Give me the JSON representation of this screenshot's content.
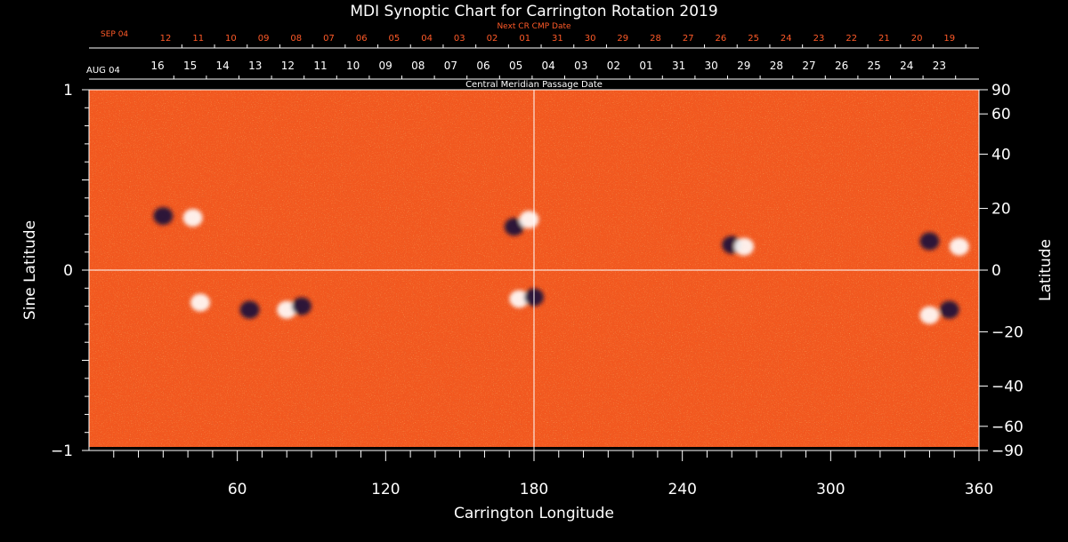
{
  "chart_data": {
    "type": "heatmap",
    "title": "MDI Synoptic Chart for Carrington Rotation 2019",
    "xlabel": "Carrington Longitude",
    "ylabel_left": "Sine Latitude",
    "ylabel_right": "Latitude",
    "xlim": [
      0,
      360
    ],
    "ylim": [
      -1,
      1
    ],
    "x_ticks": [
      60,
      120,
      180,
      240,
      300,
      360
    ],
    "y_ticks_left": [
      {
        "value": 1,
        "label": "1"
      },
      {
        "value": 0,
        "label": "0"
      },
      {
        "value": -1,
        "label": "−1"
      }
    ],
    "y_ticks_right": [
      {
        "deg": 90,
        "label": "90"
      },
      {
        "deg": 60,
        "label": "60"
      },
      {
        "deg": 40,
        "label": "40"
      },
      {
        "deg": 20,
        "label": "20"
      },
      {
        "deg": 0,
        "label": "0"
      },
      {
        "deg": -20,
        "label": "−20"
      },
      {
        "deg": -40,
        "label": "−40"
      },
      {
        "deg": -60,
        "label": "−60"
      },
      {
        "deg": -90,
        "label": "−90"
      }
    ],
    "crosshair": {
      "longitude": 180,
      "sine_latitude": 0
    },
    "next_cr_axis": {
      "caption": "Next CR CMP Date",
      "month_label": "SEP 04",
      "labels": [
        "12",
        "11",
        "10",
        "09",
        "08",
        "07",
        "06",
        "05",
        "04",
        "03",
        "02",
        "01",
        "31",
        "30",
        "29",
        "28",
        "27",
        "26",
        "25",
        "24",
        "23",
        "22",
        "21",
        "20",
        "19"
      ]
    },
    "cmp_axis": {
      "caption": "Central Meridian Passage Date",
      "month_label": "AUG 04",
      "labels": [
        "16",
        "15",
        "14",
        "13",
        "12",
        "11",
        "10",
        "09",
        "08",
        "07",
        "06",
        "05",
        "04",
        "03",
        "02",
        "01",
        "31",
        "30",
        "29",
        "28",
        "27",
        "26",
        "25",
        "24",
        "23"
      ]
    },
    "colors": {
      "background_field": "#f2581f",
      "positive_polarity": "#ffffff",
      "negative_polarity": "#14103a",
      "next_cr_text": "#ff5a28",
      "axes": "#ffffff"
    },
    "active_regions": [
      {
        "longitude": 30,
        "sine_latitude": 0.3,
        "polarity": "negative"
      },
      {
        "longitude": 42,
        "sine_latitude": 0.29,
        "polarity": "positive"
      },
      {
        "longitude": 172,
        "sine_latitude": 0.24,
        "polarity": "negative"
      },
      {
        "longitude": 178,
        "sine_latitude": 0.28,
        "polarity": "positive"
      },
      {
        "longitude": 260,
        "sine_latitude": 0.14,
        "polarity": "negative"
      },
      {
        "longitude": 265,
        "sine_latitude": 0.13,
        "polarity": "positive"
      },
      {
        "longitude": 340,
        "sine_latitude": 0.16,
        "polarity": "negative"
      },
      {
        "longitude": 352,
        "sine_latitude": 0.13,
        "polarity": "positive"
      },
      {
        "longitude": 45,
        "sine_latitude": -0.18,
        "polarity": "positive"
      },
      {
        "longitude": 65,
        "sine_latitude": -0.22,
        "polarity": "negative"
      },
      {
        "longitude": 80,
        "sine_latitude": -0.22,
        "polarity": "positive"
      },
      {
        "longitude": 86,
        "sine_latitude": -0.2,
        "polarity": "negative"
      },
      {
        "longitude": 174,
        "sine_latitude": -0.16,
        "polarity": "positive"
      },
      {
        "longitude": 180,
        "sine_latitude": -0.15,
        "polarity": "negative"
      },
      {
        "longitude": 340,
        "sine_latitude": -0.25,
        "polarity": "positive"
      },
      {
        "longitude": 348,
        "sine_latitude": -0.22,
        "polarity": "negative"
      }
    ]
  }
}
